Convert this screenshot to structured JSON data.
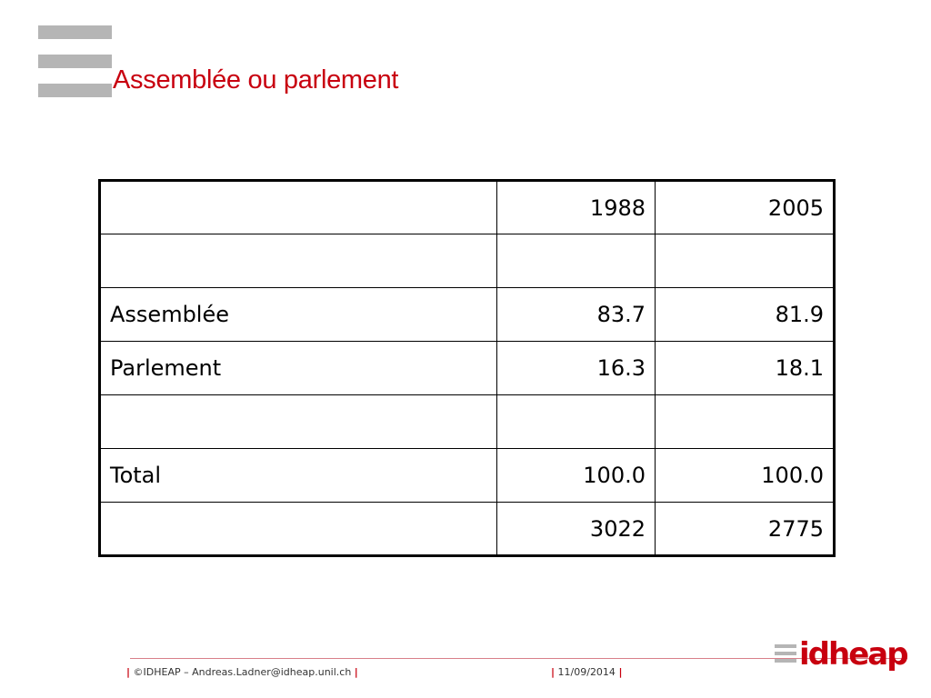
{
  "slide": {
    "title": "Assemblée ou parlement"
  },
  "table": {
    "header": [
      "",
      "1988",
      "2005"
    ],
    "rows": [
      [
        "",
        "",
        ""
      ],
      [
        "Assemblée",
        "83.7",
        "81.9"
      ],
      [
        "Parlement",
        "16.3",
        "18.1"
      ],
      [
        "",
        "",
        ""
      ],
      [
        "Total",
        "100.0",
        "100.0"
      ],
      [
        "",
        "3022",
        "2775"
      ]
    ]
  },
  "footer": {
    "separator": "|",
    "copyright": "©IDHEAP – Andreas.Ladner@idheap.unil.ch",
    "date": "11/09/2014"
  },
  "logo": {
    "text": "idheap"
  },
  "colors": {
    "accent": "#c8000f",
    "bars": "#b5b5b5"
  }
}
